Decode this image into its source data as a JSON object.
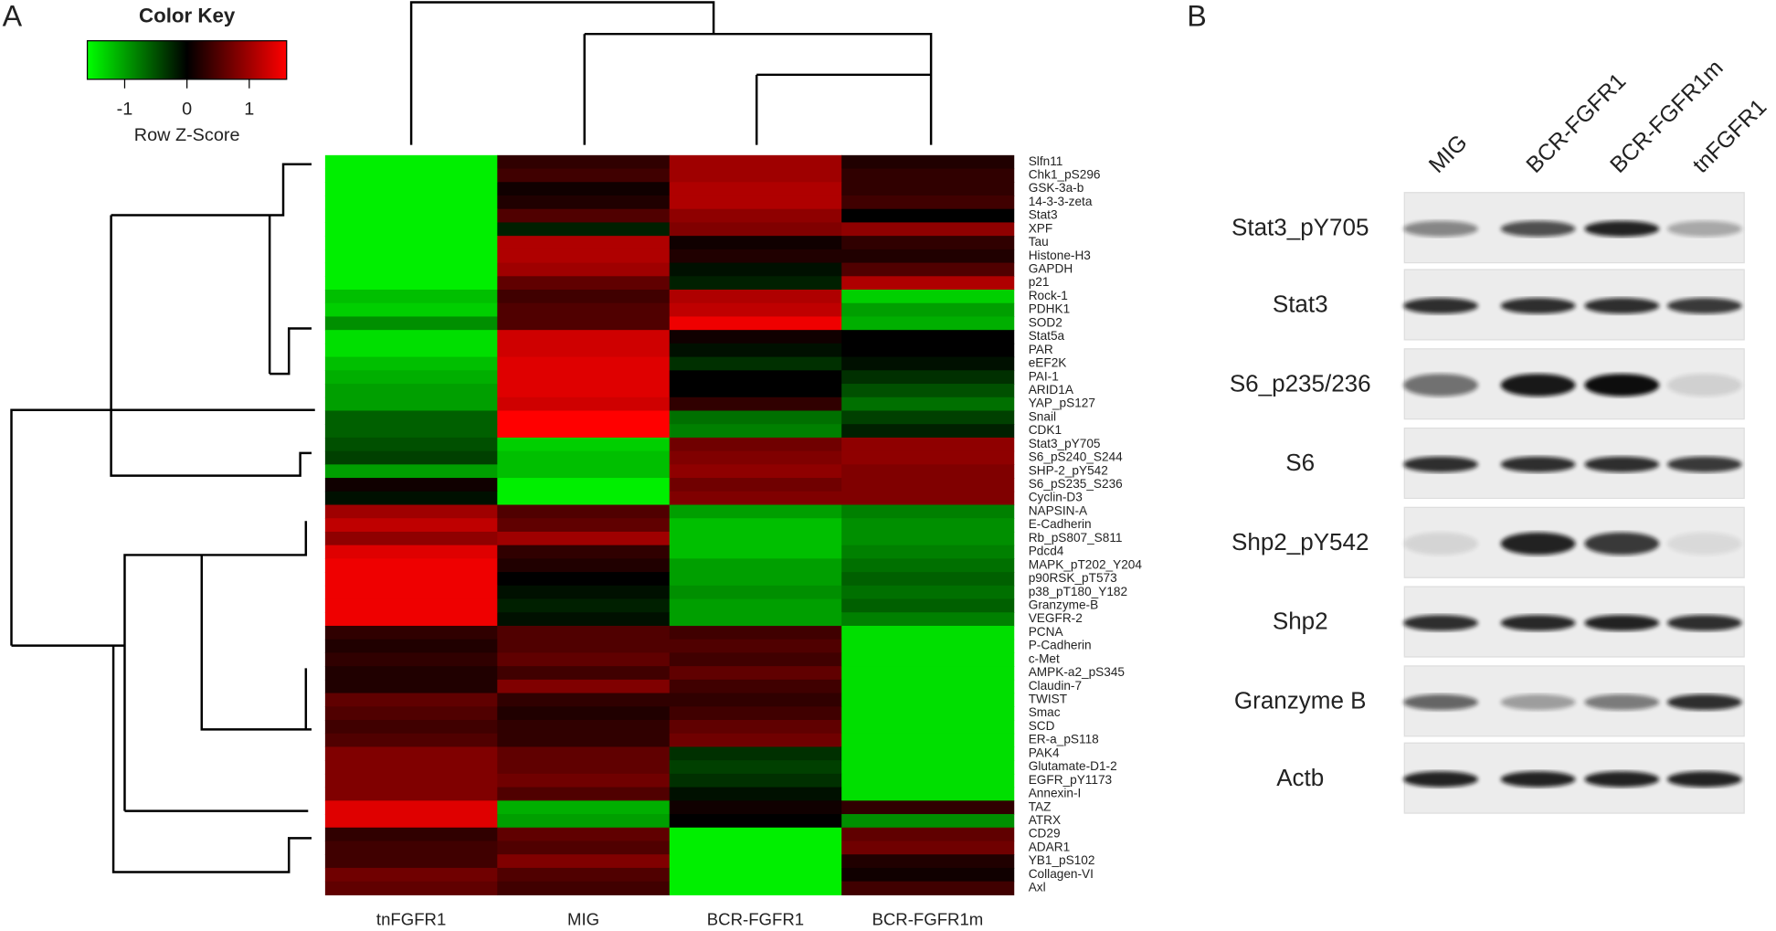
{
  "panel_labels": [
    "A",
    "B"
  ],
  "chart_data": {
    "type": "heatmap",
    "key_title": "Color Key",
    "key_label": "Row Z-Score",
    "zlim": [
      -1.6,
      1.6
    ],
    "zticks": [
      -1,
      0,
      1
    ],
    "colors": {
      "low": "#00ff00",
      "mid": "#000000",
      "high": "#ff0000"
    },
    "columns": [
      "tnFGFR1",
      "MIG",
      "BCR-FGFR1",
      "BCR-FGFR1m"
    ],
    "rows": [
      "Slfn11",
      "Chk1_pS296",
      "GSK-3a-b",
      "14-3-3-zeta",
      "Stat3",
      "XPF",
      "Tau",
      "Histone-H3",
      "GAPDH",
      "p21",
      "Rock-1",
      "PDHK1",
      "SOD2",
      "Stat5a",
      "PAR",
      "eEF2K",
      "PAI-1",
      "ARID1A",
      "YAP_pS127",
      "Snail",
      "CDK1",
      "Stat3_pY705",
      "S6_pS240_S244",
      "SHP-2_pY542",
      "S6_pS235_S236",
      "Cyclin-D3",
      "NAPSIN-A",
      "E-Cadherin",
      "Rb_pS807_S811",
      "Pdcd4",
      "MAPK_pT202_Y204",
      "p90RSK_pT573",
      "p38_pT180_Y182",
      "Granzyme-B",
      "VEGFR-2",
      "PCNA",
      "P-Cadherin",
      "c-Met",
      "AMPK-a2_pS345",
      "Claudin-7",
      "TWIST",
      "Smac",
      "SCD",
      "ER-a_pS118",
      "PAK4",
      "Glutamate-D1-2",
      "EGFR_pY1173",
      "Annexin-I",
      "TAZ",
      "ATRX",
      "CD29",
      "ADAR1",
      "YB1_pS102",
      "Collagen-VI",
      "Axl"
    ],
    "values": [
      [
        -1.5,
        0.3,
        1.0,
        0.2
      ],
      [
        -1.5,
        0.4,
        1.0,
        0.3
      ],
      [
        -1.5,
        0.1,
        1.1,
        0.3
      ],
      [
        -1.5,
        0.2,
        1.1,
        0.4
      ],
      [
        -1.5,
        0.5,
        0.9,
        0
      ],
      [
        -1.5,
        -0.2,
        0.8,
        0.9
      ],
      [
        -1.5,
        1.1,
        0.1,
        0.3
      ],
      [
        -1.5,
        1.1,
        0.2,
        0.2
      ],
      [
        -1.5,
        1.0,
        -0.1,
        0.5
      ],
      [
        -1.5,
        0.6,
        -0.2,
        1.1
      ],
      [
        -1.2,
        0.4,
        1.1,
        -1.3
      ],
      [
        -1.3,
        0.5,
        1.2,
        -1.0
      ],
      [
        -0.9,
        0.5,
        1.5,
        -1.1
      ],
      [
        -1.4,
        1.3,
        0.1,
        0
      ],
      [
        -1.4,
        1.3,
        -0.1,
        0
      ],
      [
        -1.2,
        1.4,
        -0.3,
        -0.1
      ],
      [
        -1.1,
        1.4,
        0,
        -0.3
      ],
      [
        -1.0,
        1.4,
        0,
        -0.5
      ],
      [
        -1.0,
        1.3,
        0.3,
        -0.7
      ],
      [
        -0.6,
        1.6,
        -0.7,
        -0.4
      ],
      [
        -0.6,
        1.6,
        -0.8,
        -0.2
      ],
      [
        -0.5,
        -1.3,
        0.7,
        0.9
      ],
      [
        -0.4,
        -1.2,
        0.8,
        0.9
      ],
      [
        -1.0,
        -1.2,
        0.9,
        0.8
      ],
      [
        0.1,
        -1.5,
        0.7,
        0.8
      ],
      [
        -0.1,
        -1.5,
        0.8,
        0.8
      ],
      [
        1.0,
        0.5,
        -1.0,
        -0.8
      ],
      [
        1.2,
        0.6,
        -1.2,
        -0.9
      ],
      [
        0.9,
        1.0,
        -1.2,
        -0.9
      ],
      [
        1.4,
        0.3,
        -1.2,
        -0.8
      ],
      [
        1.5,
        0.2,
        -1.0,
        -0.7
      ],
      [
        1.5,
        0,
        -1.0,
        -0.6
      ],
      [
        1.5,
        -0.1,
        -0.9,
        -0.7
      ],
      [
        1.5,
        -0.2,
        -1.0,
        -0.6
      ],
      [
        1.5,
        -0.1,
        -1.0,
        -0.8
      ],
      [
        0.3,
        0.5,
        0.4,
        -1.4
      ],
      [
        0.2,
        0.5,
        0.5,
        -1.4
      ],
      [
        0.3,
        0.6,
        0.4,
        -1.4
      ],
      [
        0.2,
        0.4,
        0.6,
        -1.4
      ],
      [
        0.2,
        0.8,
        0.4,
        -1.4
      ],
      [
        0.6,
        0.3,
        0.3,
        -1.4
      ],
      [
        0.5,
        0.2,
        0.4,
        -1.4
      ],
      [
        0.4,
        0.3,
        0.6,
        -1.4
      ],
      [
        0.5,
        0.3,
        0.7,
        -1.4
      ],
      [
        0.8,
        0.6,
        -0.3,
        -1.4
      ],
      [
        0.8,
        0.6,
        -0.4,
        -1.4
      ],
      [
        0.8,
        0.7,
        -0.3,
        -1.4
      ],
      [
        0.8,
        0.5,
        -0.1,
        -1.4
      ],
      [
        1.4,
        -1.1,
        0.1,
        0.3
      ],
      [
        1.4,
        -1.0,
        0,
        -0.9
      ],
      [
        0.3,
        0.6,
        -1.5,
        0.6
      ],
      [
        0.4,
        0.5,
        -1.5,
        0.7
      ],
      [
        0.4,
        0.8,
        -1.5,
        0.2
      ],
      [
        0.7,
        0.5,
        -1.5,
        0.1
      ],
      [
        0.6,
        0.4,
        -1.5,
        0.4
      ]
    ]
  },
  "blot": {
    "columns": [
      "MIG",
      "BCR-FGFR1",
      "BCR-FGFR1m",
      "tnFGFR1"
    ],
    "rows": [
      "Stat3_pY705",
      "Stat3",
      "S6_p235/236",
      "S6",
      "Shp2_pY542",
      "Shp2",
      "Granzyme B",
      "Actb"
    ]
  }
}
